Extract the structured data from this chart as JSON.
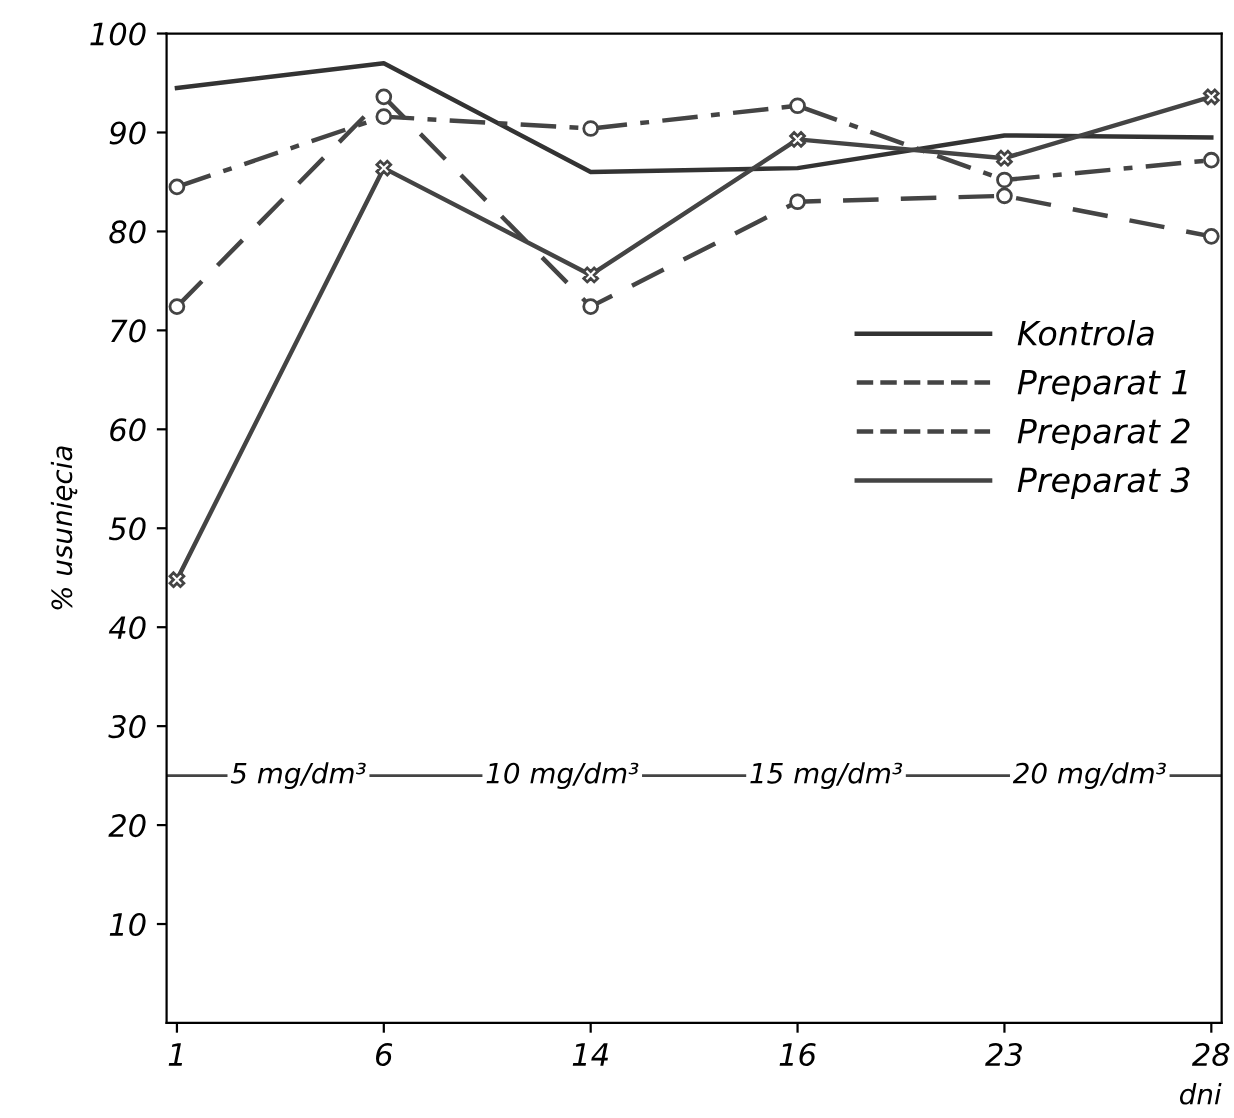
{
  "chart_data": {
    "type": "line",
    "xlabel": "dni",
    "ylabel": "% usunięcia",
    "categories": [
      "1",
      "6",
      "14",
      "16",
      "23",
      "28"
    ],
    "series": [
      {
        "name": "Kontrola",
        "color": "#333333",
        "values": [
          94.5,
          97,
          86,
          86.4,
          89.7,
          89.5
        ],
        "line_style": "solid",
        "marker": "none"
      },
      {
        "name": "Preparat 1",
        "color": "#444444",
        "values": [
          72.4,
          93.6,
          72.4,
          83,
          83.6,
          79.5
        ],
        "line_style": "dashed",
        "marker": "circle"
      },
      {
        "name": "Preparat 2",
        "color": "#444444",
        "values": [
          84.5,
          91.6,
          90.4,
          92.7,
          85.2,
          87.2
        ],
        "line_style": "dashdot",
        "marker": "circle"
      },
      {
        "name": "Preparat 3",
        "color": "#444444",
        "values": [
          44.8,
          86.4,
          75.6,
          89.3,
          87.4,
          93.6
        ],
        "line_style": "solid",
        "marker": "cross"
      }
    ],
    "ylim": [
      0,
      100
    ],
    "yticks": [
      10,
      20,
      30,
      40,
      50,
      60,
      70,
      80,
      90,
      100
    ],
    "annotations": [
      "5 mg/dm³",
      "10 mg/dm³",
      "15 mg/dm³",
      "20 mg/dm³"
    ],
    "ref_lines": [
      {
        "axis": "y",
        "value": 25,
        "color": "#444444"
      }
    ],
    "legend": "right",
    "grid": false
  }
}
